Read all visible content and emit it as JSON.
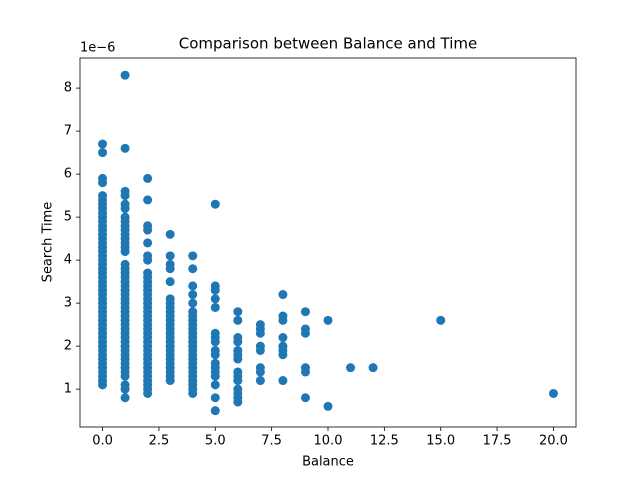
{
  "chart_data": {
    "type": "scatter",
    "title": "Comparison between Balance and Time",
    "xlabel": "Balance",
    "ylabel": "Search Time",
    "y_offset_label": "1e−6",
    "color": "#1f77b4",
    "xlim": [
      -1,
      21
    ],
    "ylim": [
      0.12,
      8.7
    ],
    "xticks": [
      {
        "value": 0,
        "label": "0.0"
      },
      2.5,
      {
        "value": 5,
        "label": "5.0"
      },
      7.5,
      {
        "value": 10,
        "label": "10.0"
      },
      12.5,
      {
        "value": 15,
        "label": "15.0"
      },
      17.5,
      {
        "value": 20,
        "label": "20.0"
      }
    ],
    "yticks": [
      1,
      2,
      3,
      4,
      5,
      6,
      7,
      8
    ],
    "x": [
      0,
      0,
      0,
      0,
      0,
      0,
      0,
      0,
      0,
      0,
      0,
      0,
      0,
      0,
      0,
      0,
      0,
      0,
      0,
      0,
      0,
      0,
      0,
      0,
      0,
      0,
      0,
      0,
      0,
      0,
      0,
      0,
      0,
      0,
      0,
      0,
      0,
      0,
      0,
      0,
      0,
      0,
      0,
      0,
      0,
      0,
      0,
      0,
      0,
      1,
      1,
      1,
      1,
      1,
      1,
      1,
      1,
      1,
      1,
      1,
      1,
      1,
      1,
      1,
      1,
      1,
      1,
      1,
      1,
      1,
      1,
      1,
      1,
      1,
      1,
      1,
      1,
      1,
      1,
      1,
      1,
      1,
      1,
      1,
      1,
      1,
      1,
      1,
      1,
      1,
      1,
      1,
      1,
      1,
      2,
      2,
      2,
      2,
      2,
      2,
      2,
      2,
      2,
      2,
      2,
      2,
      2,
      2,
      2,
      2,
      2,
      2,
      2,
      2,
      2,
      2,
      2,
      2,
      2,
      2,
      2,
      2,
      2,
      2,
      2,
      2,
      2,
      2,
      2,
      2,
      3,
      3,
      3,
      3,
      3,
      3,
      3,
      3,
      3,
      3,
      3,
      3,
      3,
      3,
      3,
      3,
      3,
      3,
      3,
      3,
      3,
      3,
      3,
      3,
      3,
      4,
      4,
      4,
      4,
      4,
      4,
      4,
      4,
      4,
      4,
      4,
      4,
      4,
      4,
      4,
      4,
      4,
      4,
      4,
      4,
      4,
      4,
      4,
      4,
      4,
      5,
      5,
      5,
      5,
      5,
      5,
      5,
      5,
      5,
      5,
      5,
      5,
      5,
      5,
      5,
      5,
      5,
      6,
      6,
      6,
      6,
      6,
      6,
      6,
      6,
      6,
      6,
      6,
      6,
      6,
      6,
      7,
      7,
      7,
      7,
      7,
      7,
      7,
      7,
      8,
      8,
      8,
      8,
      8,
      8,
      8,
      8,
      9,
      9,
      9,
      9,
      9,
      9,
      10,
      10,
      11,
      12,
      15,
      20
    ],
    "y": [
      6.7,
      6.5,
      5.9,
      5.8,
      5.5,
      5.4,
      5.3,
      5.2,
      5.1,
      5.0,
      4.9,
      4.8,
      4.7,
      4.6,
      4.5,
      4.4,
      4.3,
      4.2,
      4.1,
      4.0,
      3.9,
      3.8,
      3.7,
      3.6,
      3.5,
      3.4,
      3.3,
      3.2,
      3.1,
      3.0,
      2.9,
      2.8,
      2.7,
      2.6,
      2.5,
      2.4,
      2.3,
      2.2,
      2.1,
      2.0,
      1.9,
      1.8,
      1.7,
      1.6,
      1.5,
      1.4,
      1.3,
      1.2,
      1.1,
      8.3,
      6.6,
      5.6,
      5.5,
      5.3,
      5.2,
      5.0,
      4.9,
      4.8,
      4.7,
      4.6,
      4.5,
      4.4,
      4.3,
      4.2,
      3.9,
      3.8,
      3.7,
      3.6,
      3.5,
      3.4,
      3.3,
      3.2,
      3.1,
      3.0,
      2.9,
      2.8,
      2.7,
      2.6,
      2.5,
      2.4,
      2.3,
      2.2,
      2.1,
      2.0,
      1.9,
      1.8,
      1.7,
      1.6,
      1.5,
      1.4,
      1.3,
      1.1,
      1.0,
      0.8,
      5.9,
      5.4,
      4.8,
      4.7,
      4.4,
      4.1,
      4.0,
      3.7,
      3.6,
      3.5,
      3.4,
      3.3,
      3.2,
      3.1,
      3.0,
      2.9,
      2.8,
      2.7,
      2.6,
      2.5,
      2.4,
      2.3,
      2.2,
      2.1,
      2.0,
      1.9,
      1.8,
      1.7,
      1.6,
      1.5,
      1.4,
      1.3,
      1.2,
      1.1,
      1.0,
      0.9,
      4.6,
      4.1,
      3.9,
      3.8,
      3.5,
      3.1,
      3.0,
      2.9,
      2.8,
      2.7,
      2.6,
      2.5,
      2.4,
      2.3,
      2.2,
      2.1,
      2.0,
      1.9,
      1.8,
      1.7,
      1.6,
      1.5,
      1.4,
      1.3,
      1.2,
      4.1,
      3.8,
      3.4,
      3.2,
      3.0,
      2.8,
      2.7,
      2.6,
      2.5,
      2.4,
      2.3,
      2.2,
      2.1,
      2.0,
      1.9,
      1.8,
      1.7,
      1.6,
      1.5,
      1.4,
      1.3,
      1.2,
      1.1,
      1.0,
      0.9,
      5.3,
      3.4,
      3.3,
      3.1,
      2.9,
      2.3,
      2.2,
      2.1,
      1.9,
      1.8,
      1.6,
      1.5,
      1.4,
      1.3,
      1.1,
      0.8,
      0.5,
      2.8,
      2.6,
      2.2,
      2.1,
      1.9,
      1.8,
      1.7,
      1.4,
      1.3,
      1.2,
      1.0,
      0.9,
      0.8,
      0.7,
      2.5,
      2.4,
      2.3,
      2.0,
      1.9,
      1.5,
      1.4,
      1.2,
      3.2,
      2.7,
      2.6,
      2.2,
      2.0,
      1.9,
      1.8,
      1.2,
      2.8,
      2.4,
      2.3,
      1.5,
      1.4,
      0.8,
      2.6,
      0.6,
      1.5,
      1.5,
      2.6,
      0.9
    ]
  }
}
